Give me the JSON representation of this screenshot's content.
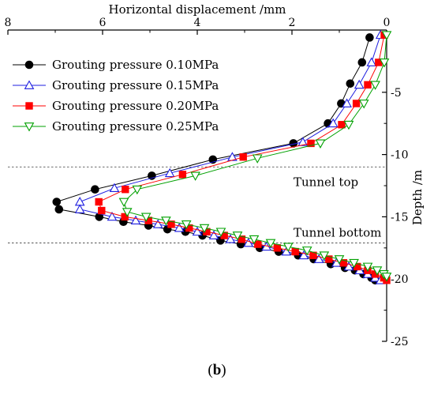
{
  "chart_data": {
    "type": "line",
    "xlabel": "Horizontal displacement /mm",
    "ylabel": "Depth /m",
    "x_axis_position": "top",
    "y_axis_position": "right",
    "x_reversed": true,
    "y_reversed": true,
    "xlim": [
      0,
      8
    ],
    "ylim": [
      0,
      25
    ],
    "x_ticks": [
      "0",
      "2",
      "4",
      "6",
      "8"
    ],
    "y_ticks": [
      "-5",
      "-10",
      "-15",
      "-20",
      "-25"
    ],
    "y_tick_values": [
      5,
      10,
      15,
      20,
      25
    ],
    "x_tick_values": [
      0,
      2,
      4,
      6,
      8
    ],
    "grid": false,
    "legend_position": "top-left",
    "reference_lines": [
      {
        "label": "Tunnel top",
        "depth": 11.0
      },
      {
        "label": "Tunnel bottom",
        "depth": 17.1
      }
    ],
    "series": [
      {
        "name": "Grouting pressure 0.10MPa",
        "marker": "circle",
        "color": "#000000",
        "filled": true,
        "points": [
          [
            0.36,
            0.6
          ],
          [
            0.52,
            2.6
          ],
          [
            0.77,
            4.3
          ],
          [
            0.96,
            5.9
          ],
          [
            1.24,
            7.5
          ],
          [
            1.97,
            9.1
          ],
          [
            3.67,
            10.4
          ],
          [
            4.96,
            11.7
          ],
          [
            6.16,
            12.8
          ],
          [
            6.97,
            13.8
          ],
          [
            6.92,
            14.4
          ],
          [
            6.07,
            15.0
          ],
          [
            5.56,
            15.4
          ],
          [
            5.03,
            15.7
          ],
          [
            4.63,
            16.0
          ],
          [
            4.25,
            16.2
          ],
          [
            3.89,
            16.5
          ],
          [
            3.51,
            16.9
          ],
          [
            3.08,
            17.2
          ],
          [
            2.68,
            17.5
          ],
          [
            2.28,
            17.8
          ],
          [
            1.87,
            18.1
          ],
          [
            1.54,
            18.4
          ],
          [
            1.18,
            18.8
          ],
          [
            0.88,
            19.1
          ],
          [
            0.67,
            19.3
          ],
          [
            0.49,
            19.6
          ],
          [
            0.32,
            19.9
          ],
          [
            0.24,
            20.1
          ]
        ]
      },
      {
        "name": "Grouting pressure 0.15MPa",
        "marker": "triangle-up",
        "color": "#1f1fe0",
        "filled": false,
        "points": [
          [
            0.13,
            0.4
          ],
          [
            0.32,
            2.6
          ],
          [
            0.58,
            4.4
          ],
          [
            0.84,
            5.9
          ],
          [
            1.13,
            7.5
          ],
          [
            1.77,
            9.0
          ],
          [
            3.26,
            10.2
          ],
          [
            4.58,
            11.5
          ],
          [
            5.75,
            12.7
          ],
          [
            6.48,
            13.8
          ],
          [
            6.48,
            14.4
          ],
          [
            5.8,
            15.0
          ],
          [
            5.3,
            15.3
          ],
          [
            4.83,
            15.6
          ],
          [
            4.38,
            15.9
          ],
          [
            4.0,
            16.2
          ],
          [
            3.65,
            16.5
          ],
          [
            3.3,
            16.8
          ],
          [
            2.92,
            17.1
          ],
          [
            2.54,
            17.4
          ],
          [
            2.12,
            17.8
          ],
          [
            1.75,
            18.1
          ],
          [
            1.43,
            18.4
          ],
          [
            1.06,
            18.7
          ],
          [
            0.8,
            19.0
          ],
          [
            0.57,
            19.3
          ],
          [
            0.4,
            19.6
          ],
          [
            0.24,
            19.9
          ],
          [
            0.13,
            20.1
          ]
        ]
      },
      {
        "name": "Grouting pressure 0.20MPa",
        "marker": "square",
        "color": "#ff0000",
        "filled": true,
        "points": [
          [
            0.05,
            0.4
          ],
          [
            0.17,
            2.6
          ],
          [
            0.4,
            4.4
          ],
          [
            0.64,
            5.9
          ],
          [
            0.95,
            7.6
          ],
          [
            1.6,
            9.1
          ],
          [
            3.03,
            10.2
          ],
          [
            4.31,
            11.6
          ],
          [
            5.52,
            12.8
          ],
          [
            6.08,
            13.8
          ],
          [
            6.02,
            14.5
          ],
          [
            5.53,
            15.0
          ],
          [
            5.03,
            15.3
          ],
          [
            4.55,
            15.6
          ],
          [
            4.17,
            15.9
          ],
          [
            3.8,
            16.2
          ],
          [
            3.43,
            16.5
          ],
          [
            3.06,
            16.8
          ],
          [
            2.72,
            17.2
          ],
          [
            2.31,
            17.5
          ],
          [
            1.93,
            17.8
          ],
          [
            1.55,
            18.1
          ],
          [
            1.22,
            18.4
          ],
          [
            0.91,
            18.7
          ],
          [
            0.62,
            19.0
          ],
          [
            0.4,
            19.3
          ],
          [
            0.24,
            19.6
          ],
          [
            0.06,
            19.9
          ],
          [
            0.0,
            20.1
          ]
        ]
      },
      {
        "name": "Grouting pressure 0.25MPa",
        "marker": "triangle-down",
        "color": "#00a000",
        "filled": false,
        "points": [
          [
            0.0,
            0.4
          ],
          [
            0.05,
            2.6
          ],
          [
            0.24,
            4.4
          ],
          [
            0.48,
            5.9
          ],
          [
            0.8,
            7.6
          ],
          [
            1.4,
            9.1
          ],
          [
            2.73,
            10.3
          ],
          [
            4.04,
            11.7
          ],
          [
            5.27,
            12.8
          ],
          [
            5.55,
            13.8
          ],
          [
            5.48,
            14.6
          ],
          [
            5.08,
            15.0
          ],
          [
            4.66,
            15.3
          ],
          [
            4.23,
            15.6
          ],
          [
            3.85,
            15.9
          ],
          [
            3.5,
            16.2
          ],
          [
            3.15,
            16.5
          ],
          [
            2.8,
            16.8
          ],
          [
            2.45,
            17.1
          ],
          [
            2.08,
            17.4
          ],
          [
            1.68,
            17.7
          ],
          [
            1.32,
            18.1
          ],
          [
            1.0,
            18.4
          ],
          [
            0.69,
            18.7
          ],
          [
            0.4,
            19.0
          ],
          [
            0.2,
            19.3
          ],
          [
            0.06,
            19.6
          ],
          [
            0.0,
            19.8
          ]
        ]
      }
    ]
  },
  "caption": {
    "open": "(",
    "label": "b",
    "close": ")"
  }
}
